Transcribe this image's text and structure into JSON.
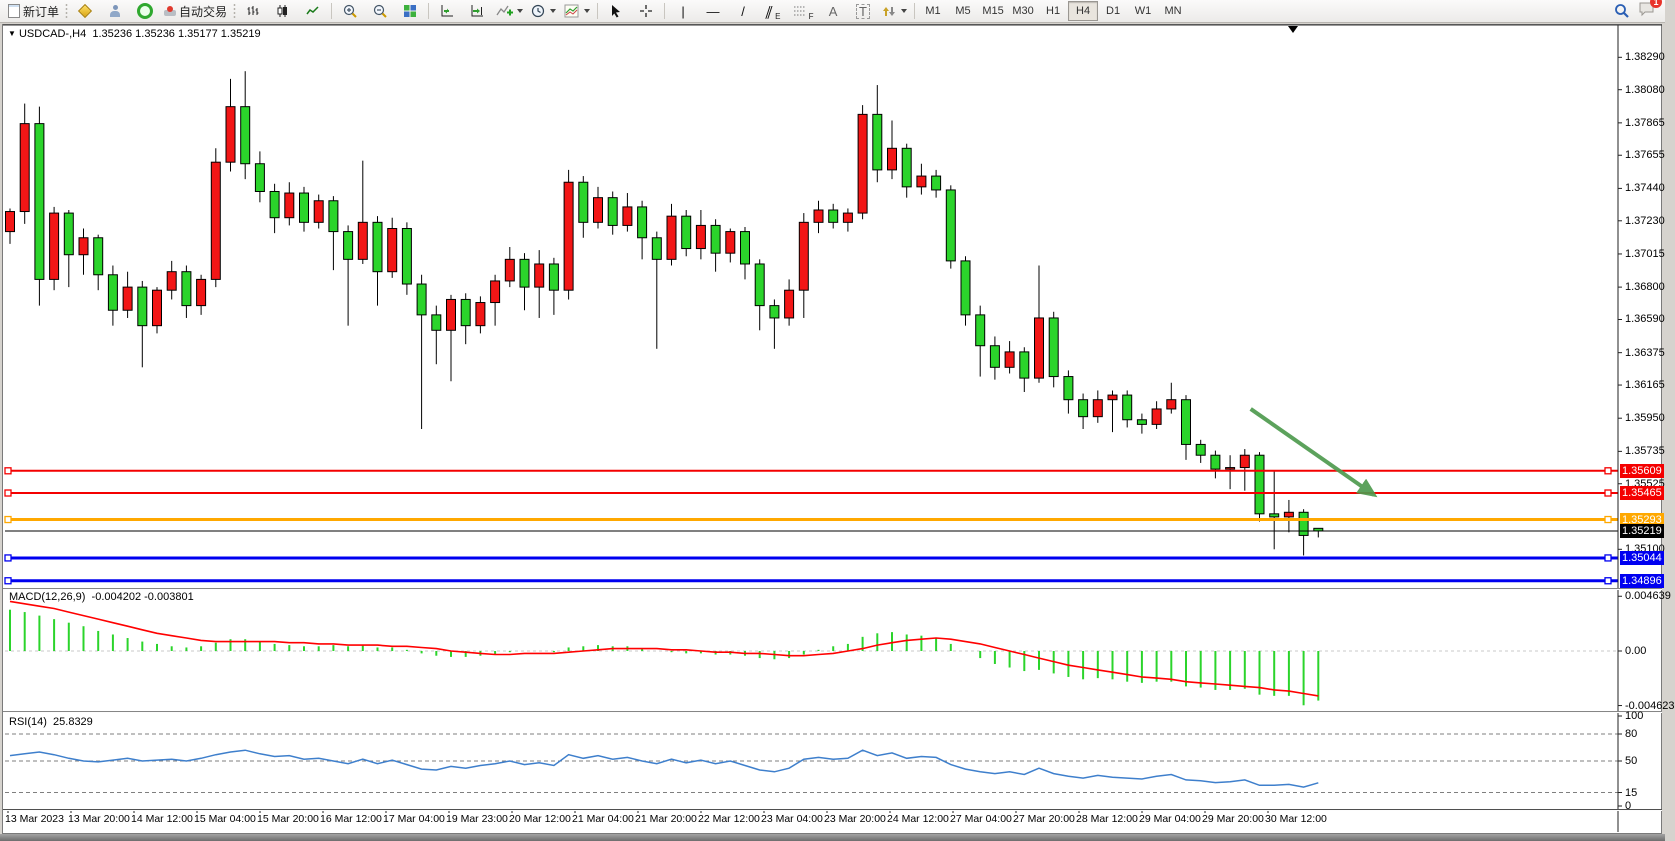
{
  "toolbar": {
    "new_order_label": "新订单",
    "autotrading_label": "自动交易",
    "timeframes": [
      "M1",
      "M5",
      "M15",
      "M30",
      "H1",
      "H4",
      "D1",
      "W1",
      "MN"
    ],
    "active_timeframe": "H4",
    "notification_badge": "1",
    "drawing_glyphs": {
      "vertical": "|",
      "horizontal": "—",
      "trend": "/",
      "channel": "∥",
      "channel_sub": "E",
      "fibo_sub": "F",
      "text": "A",
      "label": "T"
    }
  },
  "chart": {
    "title_symbol": "USDCAD-,H4",
    "title_ohlc": "1.35236 1.35236 1.35177 1.35219",
    "price_axis_labels": [
      "1.38290",
      "1.38080",
      "1.37865",
      "1.37655",
      "1.37440",
      "1.37230",
      "1.37015",
      "1.36800",
      "1.36590",
      "1.36375",
      "1.36165",
      "1.35950",
      "1.35735",
      "1.35525",
      "1.35100"
    ],
    "hlines": [
      {
        "price": 1.35609,
        "label": "1.35609",
        "color": "#f40000",
        "width": 2,
        "handles": true
      },
      {
        "price": 1.35465,
        "label": "1.35465",
        "color": "#f40000",
        "width": 2,
        "handles": true
      },
      {
        "price": 1.35293,
        "label": "1.35293",
        "color": "#ffa800",
        "width": 3,
        "handles": true
      },
      {
        "price": 1.35219,
        "label": "1.35219",
        "color": "#000000",
        "width": 1,
        "handles": false
      },
      {
        "price": 1.35044,
        "label": "1.35044",
        "color": "#0000f0",
        "width": 3,
        "handles": true
      },
      {
        "price": 1.34896,
        "label": "1.34896",
        "color": "#0000f0",
        "width": 3,
        "handles": true
      }
    ],
    "macd_label": "MACD(12,26,9)",
    "macd_values": "-0.004202 -0.003801",
    "macd_axis_labels": [
      "0.004639",
      "0.00",
      "-0.004623"
    ],
    "rsi_label": "RSI(14)",
    "rsi_value": "25.8329",
    "rsi_axis_labels": [
      "100",
      "80",
      "50",
      "15",
      "0"
    ]
  },
  "chart_data": {
    "type": "candlestick",
    "symbol": "USDCAD",
    "period": "H4",
    "color_convention": "red=up green=down",
    "up_color": "#f21616",
    "down_color": "#2bd42b",
    "price_view": {
      "top": 1.38493,
      "bottom": 1.34849
    },
    "x_labels": [
      "13 Mar 2023",
      "13 Mar 20:00",
      "14 Mar 12:00",
      "15 Mar 04:00",
      "15 Mar 20:00",
      "16 Mar 12:00",
      "17 Mar 04:00",
      "19 Mar 23:00",
      "20 Mar 12:00",
      "21 Mar 04:00",
      "21 Mar 20:00",
      "22 Mar 12:00",
      "23 Mar 04:00",
      "23 Mar 20:00",
      "24 Mar 12:00",
      "27 Mar 04:00",
      "27 Mar 20:00",
      "28 Mar 12:00",
      "29 Mar 04:00",
      "29 Mar 20:00",
      "30 Mar 12:00"
    ],
    "candles": [
      [
        1.3716,
        1.3731,
        1.3708,
        1.3729
      ],
      [
        1.3729,
        1.3799,
        1.3721,
        1.3786
      ],
      [
        1.3786,
        1.3797,
        1.3668,
        1.3685
      ],
      [
        1.3685,
        1.3732,
        1.3678,
        1.3728
      ],
      [
        1.3728,
        1.373,
        1.368,
        1.3701
      ],
      [
        1.3701,
        1.3718,
        1.3688,
        1.3712
      ],
      [
        1.3712,
        1.3714,
        1.3678,
        1.3688
      ],
      [
        1.3688,
        1.3694,
        1.3655,
        1.3665
      ],
      [
        1.3665,
        1.369,
        1.366,
        1.368
      ],
      [
        1.368,
        1.3684,
        1.3628,
        1.3655
      ],
      [
        1.3655,
        1.368,
        1.365,
        1.3678
      ],
      [
        1.3678,
        1.3697,
        1.3672,
        1.369
      ],
      [
        1.369,
        1.3694,
        1.366,
        1.3668
      ],
      [
        1.3668,
        1.3688,
        1.3662,
        1.3685
      ],
      [
        1.3685,
        1.377,
        1.368,
        1.3761
      ],
      [
        1.3761,
        1.3815,
        1.3755,
        1.3797
      ],
      [
        1.3797,
        1.382,
        1.375,
        1.376
      ],
      [
        1.376,
        1.3768,
        1.3735,
        1.3742
      ],
      [
        1.3742,
        1.3747,
        1.3715,
        1.3725
      ],
      [
        1.3725,
        1.3748,
        1.372,
        1.3741
      ],
      [
        1.3741,
        1.3745,
        1.3716,
        1.3722
      ],
      [
        1.3722,
        1.374,
        1.3718,
        1.3736
      ],
      [
        1.3736,
        1.3739,
        1.3691,
        1.3716
      ],
      [
        1.3716,
        1.372,
        1.3655,
        1.3698
      ],
      [
        1.3698,
        1.3762,
        1.3695,
        1.3722
      ],
      [
        1.3722,
        1.3726,
        1.3668,
        1.369
      ],
      [
        1.369,
        1.3725,
        1.3686,
        1.3718
      ],
      [
        1.3718,
        1.3722,
        1.3675,
        1.3682
      ],
      [
        1.3682,
        1.3688,
        1.3588,
        1.3662
      ],
      [
        1.3662,
        1.3668,
        1.363,
        1.3652
      ],
      [
        1.3652,
        1.3675,
        1.3619,
        1.3672
      ],
      [
        1.3672,
        1.3676,
        1.3643,
        1.3655
      ],
      [
        1.3655,
        1.3674,
        1.365,
        1.367
      ],
      [
        1.367,
        1.3688,
        1.3655,
        1.3684
      ],
      [
        1.3684,
        1.3706,
        1.368,
        1.3698
      ],
      [
        1.3698,
        1.3702,
        1.3665,
        1.368
      ],
      [
        1.368,
        1.3704,
        1.366,
        1.3695
      ],
      [
        1.3695,
        1.3699,
        1.3662,
        1.3678
      ],
      [
        1.3678,
        1.3756,
        1.3672,
        1.3748
      ],
      [
        1.3748,
        1.3752,
        1.3712,
        1.3722
      ],
      [
        1.3722,
        1.3745,
        1.3718,
        1.3738
      ],
      [
        1.3738,
        1.3742,
        1.3714,
        1.372
      ],
      [
        1.372,
        1.3741,
        1.3716,
        1.3732
      ],
      [
        1.3732,
        1.3736,
        1.3698,
        1.3712
      ],
      [
        1.3712,
        1.3716,
        1.364,
        1.3698
      ],
      [
        1.3698,
        1.3734,
        1.3694,
        1.3726
      ],
      [
        1.3726,
        1.373,
        1.37,
        1.3705
      ],
      [
        1.3705,
        1.373,
        1.3698,
        1.372
      ],
      [
        1.372,
        1.3724,
        1.369,
        1.3702
      ],
      [
        1.3702,
        1.3718,
        1.3696,
        1.3716
      ],
      [
        1.3716,
        1.3719,
        1.3685,
        1.3695
      ],
      [
        1.3695,
        1.3698,
        1.3652,
        1.3668
      ],
      [
        1.3668,
        1.3672,
        1.364,
        1.366
      ],
      [
        1.366,
        1.3685,
        1.3655,
        1.3678
      ],
      [
        1.3678,
        1.3728,
        1.366,
        1.3722
      ],
      [
        1.3722,
        1.3736,
        1.3715,
        1.373
      ],
      [
        1.373,
        1.3734,
        1.3718,
        1.3722
      ],
      [
        1.3722,
        1.3731,
        1.3716,
        1.3728
      ],
      [
        1.3728,
        1.3798,
        1.3724,
        1.3792
      ],
      [
        1.3792,
        1.3811,
        1.3748,
        1.3756
      ],
      [
        1.3756,
        1.3788,
        1.375,
        1.377
      ],
      [
        1.377,
        1.3773,
        1.3738,
        1.3745
      ],
      [
        1.3745,
        1.376,
        1.374,
        1.3752
      ],
      [
        1.3752,
        1.3756,
        1.3738,
        1.3743
      ],
      [
        1.3743,
        1.3746,
        1.3692,
        1.3697
      ],
      [
        1.3697,
        1.37,
        1.3655,
        1.3662
      ],
      [
        1.3662,
        1.3668,
        1.3622,
        1.3642
      ],
      [
        1.3642,
        1.3648,
        1.362,
        1.3628
      ],
      [
        1.3628,
        1.3645,
        1.3624,
        1.3638
      ],
      [
        1.3638,
        1.3641,
        1.3612,
        1.3621
      ],
      [
        1.3621,
        1.3694,
        1.3618,
        1.366
      ],
      [
        1.366,
        1.3664,
        1.3615,
        1.3622
      ],
      [
        1.3622,
        1.3626,
        1.3598,
        1.3607
      ],
      [
        1.3607,
        1.3611,
        1.3588,
        1.3596
      ],
      [
        1.3596,
        1.3613,
        1.3592,
        1.3607
      ],
      [
        1.3607,
        1.3613,
        1.3586,
        1.361
      ],
      [
        1.361,
        1.3613,
        1.3589,
        1.3594
      ],
      [
        1.3594,
        1.3598,
        1.3585,
        1.3591
      ],
      [
        1.3591,
        1.3606,
        1.3588,
        1.3601
      ],
      [
        1.3601,
        1.3618,
        1.3598,
        1.3607
      ],
      [
        1.3607,
        1.361,
        1.3568,
        1.3578
      ],
      [
        1.3578,
        1.3581,
        1.3566,
        1.3571
      ],
      [
        1.3571,
        1.3574,
        1.3556,
        1.3562
      ],
      [
        1.3562,
        1.3571,
        1.3549,
        1.3563
      ],
      [
        1.3563,
        1.3575,
        1.3548,
        1.3571
      ],
      [
        1.3571,
        1.3573,
        1.3528,
        1.3533
      ],
      [
        1.3533,
        1.3561,
        1.351,
        1.3531
      ],
      [
        1.3531,
        1.3542,
        1.3521,
        1.3534
      ],
      [
        1.3534,
        1.3536,
        1.3506,
        1.3519
      ],
      [
        1.35236,
        1.35236,
        1.35177,
        1.35219
      ]
    ],
    "macd": {
      "label": "MACD(12,26,9)",
      "current_main": -0.004202,
      "current_signal": -0.003801,
      "ylim": [
        -0.005,
        0.005
      ],
      "histogram": [
        0.0035,
        0.0033,
        0.003,
        0.0027,
        0.0024,
        0.0021,
        0.0017,
        0.0014,
        0.0011,
        0.0008,
        0.0006,
        0.0004,
        0.0003,
        0.0004,
        0.0007,
        0.001,
        0.001,
        0.0008,
        0.0006,
        0.0005,
        0.0004,
        0.0004,
        0.0005,
        0.0004,
        0.0005,
        0.0003,
        0.0003,
        0.0001,
        -0.0002,
        -0.0004,
        -0.0005,
        -0.0005,
        -0.0004,
        -0.0003,
        -0.0001,
        0.0,
        0.0,
        -0.0001,
        0.0003,
        0.0004,
        0.0005,
        0.0004,
        0.0004,
        0.0002,
        0.0,
        -0.0001,
        -0.0002,
        -0.0002,
        -0.0003,
        -0.0003,
        -0.0004,
        -0.0006,
        -0.0007,
        -0.0006,
        -0.0003,
        0.0001,
        0.0004,
        0.0006,
        0.0012,
        0.0015,
        0.0016,
        0.0014,
        0.0013,
        0.0011,
        0.0006,
        0.0,
        -0.0006,
        -0.0011,
        -0.0014,
        -0.0017,
        -0.0016,
        -0.0019,
        -0.0022,
        -0.0024,
        -0.0023,
        -0.0024,
        -0.0026,
        -0.0027,
        -0.0026,
        -0.0026,
        -0.003,
        -0.0031,
        -0.0033,
        -0.0033,
        -0.0032,
        -0.0037,
        -0.0038,
        -0.0038,
        -0.0046,
        -0.004202
      ],
      "signal": [
        0.0042,
        0.004,
        0.0038,
        0.0036,
        0.0033,
        0.003,
        0.0027,
        0.0024,
        0.0021,
        0.0018,
        0.0015,
        0.0013,
        0.0011,
        0.0009,
        0.0008,
        0.0008,
        0.0008,
        0.0008,
        0.0008,
        0.0007,
        0.0007,
        0.0006,
        0.0006,
        0.0005,
        0.0005,
        0.0005,
        0.0004,
        0.0004,
        0.0003,
        0.0002,
        0.0,
        -0.0001,
        -0.0002,
        -0.0003,
        -0.0003,
        -0.0002,
        -0.0002,
        -0.0002,
        -0.0001,
        0.0,
        0.0001,
        0.0002,
        0.0002,
        0.0002,
        0.0002,
        0.0001,
        0.0001,
        0.0,
        -0.0001,
        -0.0001,
        -0.0002,
        -0.0002,
        -0.0003,
        -0.0004,
        -0.0004,
        -0.0003,
        -0.0002,
        0.0,
        0.0002,
        0.0005,
        0.0007,
        0.0009,
        0.001,
        0.0011,
        0.001,
        0.0008,
        0.0006,
        0.0003,
        0.0,
        -0.0003,
        -0.0006,
        -0.0009,
        -0.0012,
        -0.0014,
        -0.0016,
        -0.0018,
        -0.002,
        -0.0022,
        -0.0023,
        -0.0024,
        -0.0026,
        -0.0027,
        -0.0028,
        -0.0029,
        -0.003,
        -0.0031,
        -0.0033,
        -0.0034,
        -0.0036,
        -0.003801
      ],
      "histogram_color": "#2bd42b",
      "signal_color": "#ff0000"
    },
    "rsi": {
      "label": "RSI(14)",
      "current": 25.8329,
      "ylim": [
        0,
        100
      ],
      "levels": [
        80,
        50,
        15
      ],
      "series": [
        56,
        58,
        60,
        57,
        53,
        50,
        49,
        51,
        53,
        50,
        51,
        52,
        50,
        53,
        57,
        60,
        62,
        58,
        55,
        56,
        52,
        53,
        50,
        47,
        52,
        47,
        51,
        46,
        41,
        40,
        44,
        42,
        45,
        47,
        50,
        46,
        48,
        45,
        57,
        53,
        56,
        52,
        54,
        50,
        47,
        52,
        48,
        51,
        47,
        50,
        45,
        40,
        38,
        42,
        52,
        54,
        52,
        53,
        62,
        56,
        59,
        53,
        55,
        54,
        46,
        41,
        38,
        36,
        38,
        35,
        42,
        36,
        33,
        31,
        34,
        32,
        31,
        30,
        33,
        35,
        29,
        28,
        26,
        27,
        29,
        23,
        23,
        24,
        21,
        25.8329
      ],
      "line_color": "#3e7fcc"
    },
    "annotations": [
      {
        "type": "arrow",
        "color": "#4f9b4f",
        "from_bar": 84.4,
        "from_price": 1.3601,
        "to_bar": 92.8,
        "to_price": 1.35452
      }
    ]
  }
}
